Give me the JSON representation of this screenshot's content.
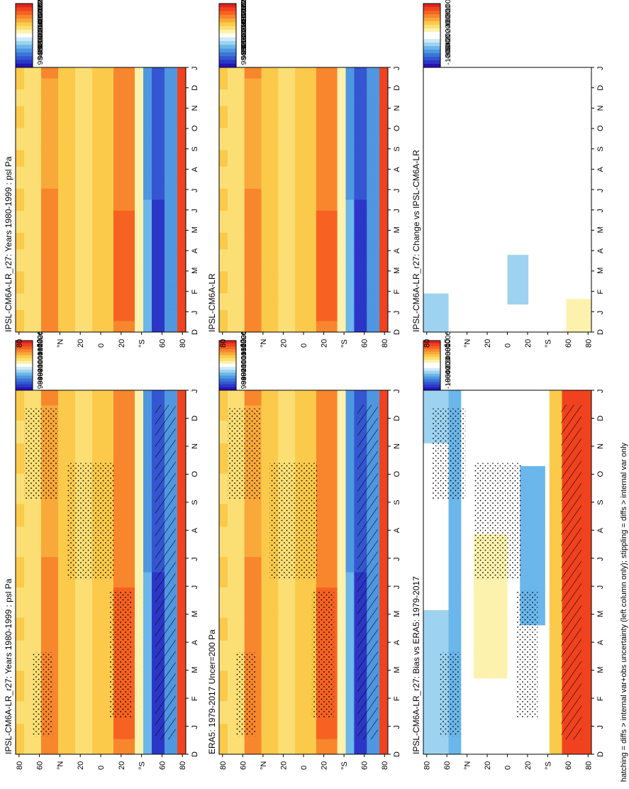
{
  "footnote": "hatching = diffs > internal var+obs uncertainty (left column only); stippling = diffs > internal var only",
  "axes": {
    "month_labels": [
      "D",
      "J",
      "F",
      "M",
      "A",
      "M",
      "J",
      "J",
      "A",
      "S",
      "O",
      "N",
      "D",
      "J"
    ],
    "lat_labels": [
      "80",
      "60",
      "°N",
      "20",
      "0",
      "20",
      "°S",
      "60",
      "80"
    ]
  },
  "colorbars": {
    "psl": {
      "labels": [
        "102400",
        "102000",
        "101600",
        "101200",
        "100800",
        "100400",
        "100000",
        "99600",
        "99200",
        "98800",
        "98400"
      ],
      "colors": [
        "#e0231f",
        "#f0421e",
        "#f66222",
        "#f8862d",
        "#f9a83a",
        "#fbca4b",
        "#fbdf74",
        "#fdf2ad",
        "#ffffff",
        "#cdeaf7",
        "#9dd3f0",
        "#6bb6ea",
        "#4f97e0",
        "#3c76d8",
        "#3456d0",
        "#2c36c6",
        "#2414bb"
      ]
    },
    "diff": {
      "labels": [
        "1000",
        "800",
        "600",
        "400",
        "200",
        "0",
        "-200",
        "-400",
        "-600",
        "-800",
        "-1000"
      ],
      "colors": [
        "#e0231f",
        "#f0421e",
        "#f66222",
        "#f8862d",
        "#f9a83a",
        "#fbca4b",
        "#fbdf74",
        "#fdf2ad",
        "#ffffff",
        "#ffffff",
        "#cdeaf7",
        "#9dd3f0",
        "#6bb6ea",
        "#4f97e0",
        "#3c76d8",
        "#3456d0",
        "#2c36c6",
        "#2414bb"
      ]
    }
  },
  "panels": [
    {
      "id": "ul",
      "title": "IPSL-CM6A-LR_r27: Years 1980-1999 : psl Pa",
      "cbar": "psl"
    },
    {
      "id": "ur",
      "title": "IPSL-CM6A-LR_r27: Years 1980-1999 : psl Pa",
      "cbar": "psl"
    },
    {
      "id": "ml",
      "title": "ERA5: 1979-2017 Uncer=200 Pa",
      "cbar": "psl"
    },
    {
      "id": "mr",
      "title": "IPSL-CM6A-LR",
      "cbar": "psl"
    },
    {
      "id": "ll",
      "title": "IPSL-CM6A-LR_r27: Bias vs ERA5: 1979-2017",
      "cbar": "diff"
    },
    {
      "id": "lr",
      "title": "IPSL-CM6A-LR_r27: Change vs IPSL-CM6A-LR",
      "cbar": "diff"
    }
  ],
  "chart_data": [
    {
      "type": "heatmap",
      "title": "IPSL-CM6A-LR_r27: Years 1980-1999 : psl Pa",
      "x": [
        "D",
        "J",
        "F",
        "M",
        "A",
        "M",
        "J",
        "J",
        "A",
        "S",
        "O",
        "N",
        "D",
        "J"
      ],
      "y_ticks": [
        "80",
        "60",
        "°N",
        "20",
        "0",
        "20",
        "°S",
        "60",
        "80"
      ],
      "zlim": [
        98400,
        102400
      ],
      "description_values": {
        "nh_subtropical_high_max": 101800,
        "sh_subtropical_high_max": 101800,
        "southern_ocean_min": 98400,
        "antarctica_jj": 102400
      }
    },
    {
      "type": "heatmap",
      "title": "IPSL-CM6A-LR_r27: Years 1980-1999 : psl Pa",
      "x": [
        "D",
        "J",
        "F",
        "M",
        "A",
        "M",
        "J",
        "J",
        "A",
        "S",
        "O",
        "N",
        "D",
        "J"
      ],
      "y_ticks": [
        "80",
        "60",
        "°N",
        "20",
        "0",
        "20",
        "°S",
        "60",
        "80"
      ],
      "zlim": [
        98400,
        102400
      ]
    },
    {
      "type": "heatmap",
      "title": "ERA5: 1979-2017 Uncer=200 Pa",
      "x": [
        "D",
        "J",
        "F",
        "M",
        "A",
        "M",
        "J",
        "J",
        "A",
        "S",
        "O",
        "N",
        "D",
        "J"
      ],
      "y_ticks": [
        "80",
        "60",
        "°N",
        "20",
        "0",
        "20",
        "°S",
        "60",
        "80"
      ],
      "zlim": [
        98400,
        102400
      ]
    },
    {
      "type": "heatmap",
      "title": "IPSL-CM6A-LR",
      "x": [
        "D",
        "J",
        "F",
        "M",
        "A",
        "M",
        "J",
        "J",
        "A",
        "S",
        "O",
        "N",
        "D",
        "J"
      ],
      "y_ticks": [
        "80",
        "60",
        "°N",
        "20",
        "0",
        "20",
        "°S",
        "60",
        "80"
      ],
      "zlim": [
        98400,
        102400
      ]
    },
    {
      "type": "heatmap",
      "title": "IPSL-CM6A-LR_r27: Bias vs ERA5: 1979-2017",
      "x": [
        "D",
        "J",
        "F",
        "M",
        "A",
        "M",
        "J",
        "J",
        "A",
        "S",
        "O",
        "N",
        "D",
        "J"
      ],
      "y_ticks": [
        "80",
        "60",
        "°N",
        "20",
        "0",
        "20",
        "°S",
        "60",
        "80"
      ],
      "zlim": [
        -1000,
        1000
      ]
    },
    {
      "type": "heatmap",
      "title": "IPSL-CM6A-LR_r27: Change vs IPSL-CM6A-LR",
      "x": [
        "D",
        "J",
        "F",
        "M",
        "A",
        "M",
        "J",
        "J",
        "A",
        "S",
        "O",
        "N",
        "D",
        "J"
      ],
      "y_ticks": [
        "80",
        "60",
        "°N",
        "20",
        "0",
        "20",
        "°S",
        "60",
        "80"
      ],
      "zlim": [
        -1000,
        1000
      ]
    }
  ]
}
